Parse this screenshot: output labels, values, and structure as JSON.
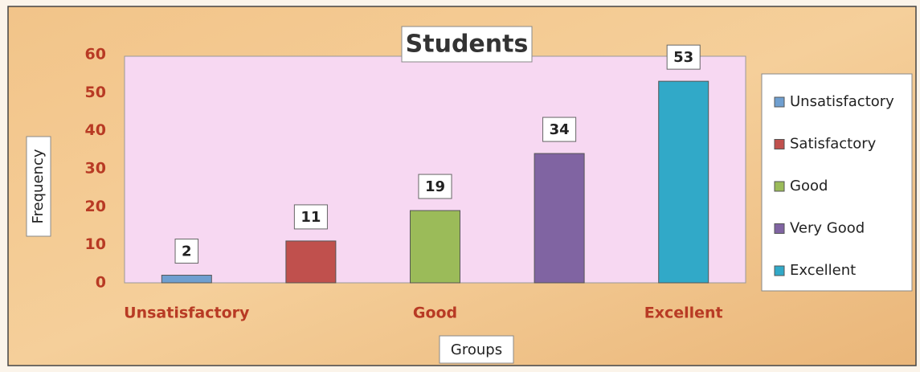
{
  "chart_data": {
    "type": "bar",
    "title": "Students",
    "categories": [
      "Unsatisfactory",
      null,
      "Good",
      null,
      "Excellent"
    ],
    "values": [
      2,
      11,
      19,
      34,
      53
    ],
    "colors": [
      "#6f9fd0",
      "#c0504d",
      "#9bbb59",
      "#8064a2",
      "#31a9c8"
    ],
    "legend": [
      "Unsatisfactory",
      "Satisfactory",
      "Good",
      "Very Good",
      "Excellent"
    ],
    "xlabel": "Groups",
    "ylabel": "Frequency",
    "ylim": [
      0,
      60
    ],
    "yticks": [
      0,
      10,
      20,
      30,
      40,
      50,
      60
    ],
    "grid": false
  }
}
